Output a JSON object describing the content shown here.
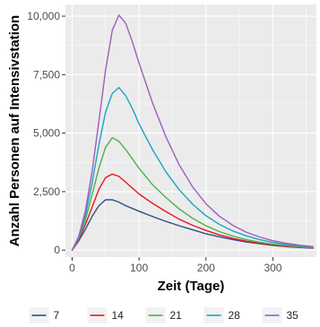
{
  "chart_data": {
    "type": "line",
    "xlabel": "Zeit (Tage)",
    "ylabel": "Anzahl Personen auf Intensivstation",
    "xlim": [
      -10,
      365
    ],
    "ylim": [
      -300,
      10500
    ],
    "x_ticks": [
      0,
      100,
      200,
      300
    ],
    "x_tick_labels": [
      "0",
      "100",
      "200",
      "300"
    ],
    "y_ticks": [
      0,
      2500,
      5000,
      7500,
      10000
    ],
    "y_tick_labels": [
      "0",
      "2,500",
      "5,000",
      "7,500",
      "10,000"
    ],
    "legend_position": "bottom",
    "grid": true,
    "background": "#ebebeb",
    "gridline_color": "#ffffff",
    "x": [
      0,
      10,
      20,
      30,
      40,
      50,
      60,
      70,
      80,
      90,
      100,
      120,
      140,
      160,
      180,
      200,
      220,
      240,
      260,
      280,
      300,
      320,
      340,
      360
    ],
    "series": [
      {
        "name": "7",
        "color": "#2c4f8c",
        "values": [
          0,
          400,
          900,
          1450,
          1900,
          2150,
          2150,
          2050,
          1900,
          1780,
          1660,
          1440,
          1230,
          1040,
          870,
          700,
          570,
          450,
          350,
          270,
          200,
          150,
          110,
          80
        ]
      },
      {
        "name": "14",
        "color": "#e41a1c",
        "values": [
          0,
          450,
          1100,
          1850,
          2600,
          3100,
          3250,
          3150,
          2900,
          2650,
          2400,
          2000,
          1650,
          1320,
          1060,
          840,
          650,
          500,
          380,
          290,
          220,
          160,
          120,
          90
        ]
      },
      {
        "name": "21",
        "color": "#4daf4a",
        "values": [
          0,
          500,
          1300,
          2400,
          3500,
          4400,
          4800,
          4650,
          4300,
          3900,
          3500,
          2800,
          2250,
          1760,
          1360,
          1040,
          790,
          600,
          450,
          340,
          250,
          190,
          140,
          100
        ]
      },
      {
        "name": "28",
        "color": "#1ba3c6",
        "values": [
          0,
          550,
          1500,
          2900,
          4500,
          5900,
          6700,
          6950,
          6600,
          6050,
          5400,
          4300,
          3350,
          2580,
          1960,
          1470,
          1100,
          820,
          610,
          450,
          330,
          240,
          180,
          130
        ]
      },
      {
        "name": "35",
        "color": "#a05cbf",
        "values": [
          0,
          600,
          1700,
          3400,
          5500,
          7700,
          9400,
          10050,
          9700,
          8900,
          8000,
          6300,
          4850,
          3650,
          2700,
          1980,
          1450,
          1060,
          770,
          560,
          400,
          290,
          210,
          150
        ]
      }
    ]
  }
}
